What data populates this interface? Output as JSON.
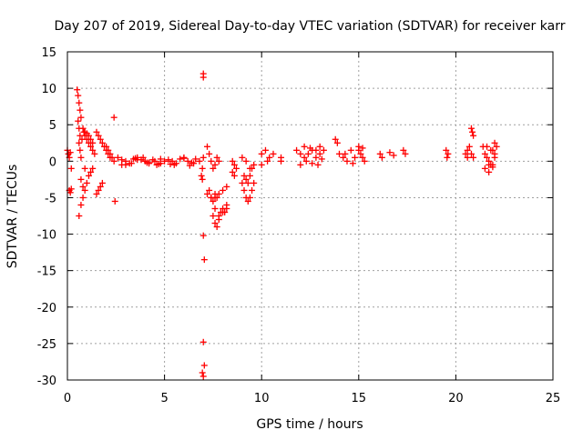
{
  "chart_data": {
    "type": "scatter",
    "title": "Day 207 of 2019, Sidereal Day-to-day VTEC variation (SDTVAR) for receiver karr",
    "xlabel": "GPS time / hours",
    "ylabel": "SDTVAR / TECUs",
    "xlim": [
      0,
      25
    ],
    "ylim": [
      -30,
      15
    ],
    "x_ticks": [
      0,
      5,
      10,
      15,
      20,
      25
    ],
    "y_ticks": [
      -30,
      -25,
      -20,
      -15,
      -10,
      -5,
      0,
      5,
      10,
      15
    ],
    "x_tick_labels": [
      "0",
      "5",
      "10",
      "15",
      "20",
      "25"
    ],
    "y_tick_labels": [
      "-30",
      "-25",
      "-20",
      "-15",
      "-10",
      "-5",
      "0",
      "5",
      "10",
      "15"
    ],
    "grid": true,
    "marker": "+",
    "color": "#ff0000",
    "series": [
      {
        "name": "SDTVAR",
        "x": [
          0.0,
          0.05,
          0.1,
          0.15,
          0.2,
          0.1,
          0.15,
          0.2,
          0.5,
          0.55,
          0.6,
          0.65,
          0.7,
          0.55,
          0.6,
          0.65,
          0.6,
          0.65,
          0.7,
          0.75,
          0.8,
          0.85,
          0.9,
          1.0,
          1.1,
          1.2,
          1.3,
          1.4,
          0.9,
          1.0,
          1.1,
          1.2,
          1.3,
          0.6,
          0.7,
          0.8,
          0.9,
          1.0,
          1.1,
          1.2,
          1.3,
          0.7,
          0.8,
          0.9,
          1.5,
          1.6,
          1.7,
          1.8,
          1.9,
          2.0,
          2.1,
          2.2,
          1.5,
          1.6,
          1.7,
          1.8,
          2.0,
          2.1,
          2.2,
          2.3,
          2.4,
          2.4,
          2.45,
          2.6,
          2.8,
          3.0,
          3.2,
          3.4,
          3.6,
          3.8,
          4.0,
          4.2,
          4.4,
          4.6,
          4.8,
          5.0,
          3.0,
          3.3,
          3.6,
          3.9,
          4.2,
          4.5,
          4.8,
          2.8,
          3.5,
          4.1,
          4.7,
          5.2,
          5.4,
          5.6,
          5.8,
          6.0,
          6.2,
          6.4,
          6.6,
          6.8,
          5.5,
          6.0,
          6.5,
          5.3,
          6.3,
          6.9,
          6.95,
          7.0,
          7.0,
          7.0,
          7.05,
          7.0,
          7.05,
          6.95,
          7.0,
          6.95,
          7.0,
          7.2,
          7.3,
          7.4,
          7.5,
          7.6,
          7.7,
          7.8,
          7.3,
          7.4,
          7.5,
          7.6,
          7.7,
          7.5,
          7.6,
          7.7,
          7.8,
          7.9,
          8.0,
          8.1,
          8.2,
          7.6,
          7.8,
          8.0,
          8.2,
          7.2,
          7.4,
          7.6,
          7.8,
          8.0,
          8.2,
          8.5,
          8.6,
          8.7,
          8.5,
          8.6,
          9.0,
          9.1,
          9.2,
          9.3,
          9.4,
          9.5,
          9.6,
          9.0,
          9.2,
          9.4,
          9.1,
          9.2,
          9.3,
          9.4,
          9.5,
          9.6,
          10.0,
          10.2,
          10.4,
          10.6,
          10.0,
          10.3,
          11.0,
          11.0,
          11.8,
          12.0,
          12.2,
          12.4,
          12.6,
          12.8,
          13.0,
          13.2,
          12.0,
          12.3,
          12.6,
          12.9,
          13.1,
          12.2,
          12.5,
          12.8,
          13.0,
          13.8,
          13.9,
          14.0,
          14.2,
          14.4,
          14.6,
          14.8,
          14.3,
          14.7,
          15.0,
          15.1,
          15.2,
          15.3,
          15.0,
          15.2,
          16.1,
          16.2,
          16.6,
          16.8,
          17.3,
          17.4,
          19.5,
          19.6,
          19.55,
          20.5,
          20.6,
          20.7,
          20.6,
          20.8,
          20.85,
          20.9,
          20.8,
          20.9,
          21.4,
          21.5,
          21.6,
          21.7,
          21.8,
          21.9,
          22.0,
          22.1,
          21.5,
          21.7,
          21.9,
          22.0,
          21.6,
          21.8,
          22.0,
          21.7,
          21.9
        ],
        "y": [
          1.5,
          1.0,
          0.5,
          1.2,
          -1.0,
          -4.0,
          -4.3,
          -3.8,
          9.8,
          9.0,
          8.0,
          7.0,
          6.0,
          5.5,
          4.5,
          3.5,
          2.5,
          1.5,
          0.5,
          3.0,
          4.5,
          4.0,
          3.5,
          3.0,
          2.5,
          2.0,
          1.5,
          1.0,
          4.0,
          3.8,
          3.5,
          3.0,
          2.5,
          -7.5,
          -6.0,
          -5.0,
          -4.0,
          -3.0,
          -2.0,
          -1.5,
          -1.0,
          -2.5,
          -3.5,
          -1.0,
          4.0,
          3.5,
          3.0,
          2.5,
          2.0,
          1.5,
          1.0,
          0.5,
          -4.5,
          -4.0,
          -3.5,
          -3.0,
          2.0,
          1.5,
          1.0,
          0.5,
          0.0,
          6.0,
          -5.5,
          0.5,
          0.2,
          0.0,
          -0.3,
          0.3,
          0.5,
          0.2,
          0.0,
          -0.3,
          0.2,
          -0.5,
          -0.3,
          0.0,
          -0.5,
          -0.3,
          0.2,
          0.5,
          -0.2,
          0.0,
          0.3,
          -0.5,
          0.4,
          -0.2,
          -0.4,
          0.2,
          0.0,
          -0.3,
          0.3,
          0.5,
          0.0,
          -0.2,
          0.3,
          0.0,
          -0.5,
          0.4,
          -0.3,
          -0.4,
          -0.6,
          -2.0,
          -2.5,
          12.0,
          11.5,
          -10.2,
          -13.5,
          -24.8,
          -28.0,
          -29.0,
          -29.5,
          -1.0,
          0.5,
          2.0,
          1.0,
          0.0,
          -1.0,
          -0.5,
          0.5,
          0.0,
          -4.0,
          -5.0,
          -5.5,
          -4.5,
          -5.0,
          -7.5,
          -8.5,
          -9.0,
          -8.0,
          -7.0,
          -6.5,
          -7.0,
          -6.0,
          -6.5,
          -7.5,
          -7.0,
          -6.5,
          -4.5,
          -5.0,
          -5.0,
          -4.5,
          -4.0,
          -3.5,
          0.0,
          -0.5,
          -1.0,
          -1.5,
          -2.0,
          -3.0,
          -4.0,
          -5.0,
          -5.5,
          -5.0,
          -4.0,
          -3.0,
          0.5,
          0.0,
          -1.0,
          -2.0,
          -2.5,
          -3.0,
          -2.0,
          -1.0,
          -0.5,
          1.0,
          1.5,
          0.5,
          1.0,
          -0.5,
          0.0,
          0.5,
          0.0,
          1.5,
          1.0,
          0.5,
          1.0,
          1.5,
          0.5,
          1.0,
          1.5,
          -0.5,
          0.0,
          -0.3,
          -0.5,
          0.3,
          2.0,
          1.8,
          1.5,
          2.0,
          3.0,
          2.5,
          1.0,
          0.5,
          0.0,
          1.5,
          0.5,
          1.0,
          -0.3,
          1.5,
          1.0,
          0.5,
          0.0,
          2.0,
          1.8,
          1.0,
          0.5,
          1.2,
          0.8,
          1.5,
          1.0,
          1.5,
          1.0,
          0.5,
          1.0,
          1.5,
          2.0,
          0.5,
          4.5,
          4.0,
          3.5,
          1.0,
          0.5,
          2.0,
          1.0,
          0.5,
          0.0,
          -0.5,
          1.5,
          2.5,
          2.0,
          -1.0,
          -1.5,
          -0.5,
          0.5,
          2.0,
          1.5,
          1.0,
          -0.5,
          -0.8
        ]
      }
    ]
  }
}
